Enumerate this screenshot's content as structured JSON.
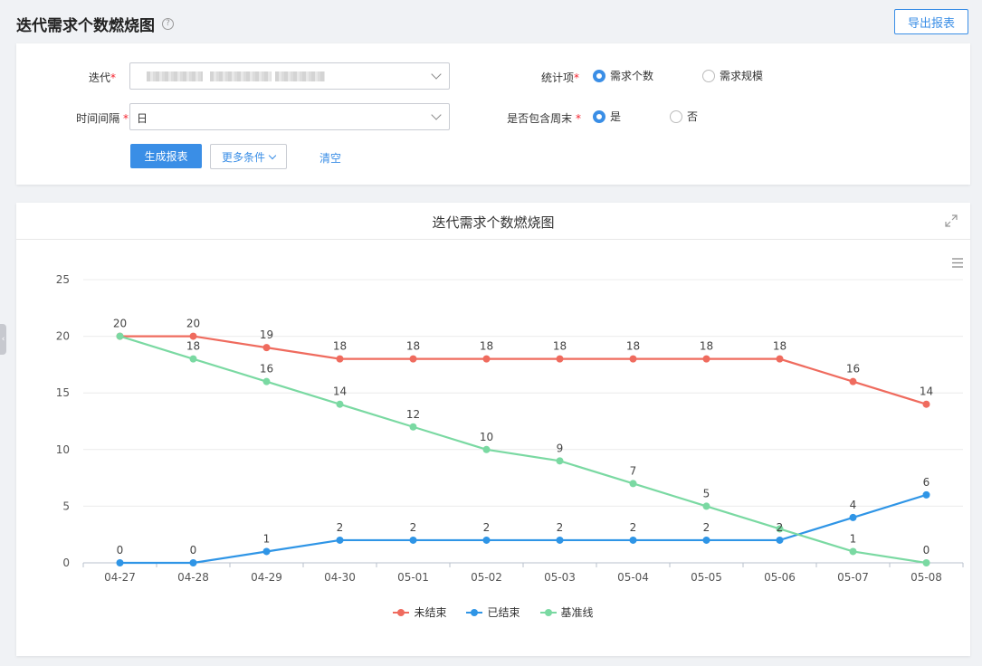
{
  "page": {
    "title": "迭代需求个数燃烧图",
    "help_icon": "question-circle-icon",
    "export_label": "导出报表"
  },
  "filters": {
    "iteration": {
      "label": "迭代",
      "value": ""
    },
    "interval": {
      "label": "时间间隔",
      "value": "日"
    },
    "stat_item": {
      "label": "统计项",
      "options": [
        "需求个数",
        "需求规模"
      ],
      "selected": "需求个数"
    },
    "include_weekend": {
      "label": "是否包含周末",
      "options": [
        "是",
        "否"
      ],
      "selected": "是"
    },
    "generate_label": "生成报表",
    "more_label": "更多条件",
    "clear_label": "清空"
  },
  "chart_data": {
    "type": "line",
    "title": "迭代需求个数燃烧图",
    "categories": [
      "04-27",
      "04-28",
      "04-29",
      "04-30",
      "05-01",
      "05-02",
      "05-03",
      "05-04",
      "05-05",
      "05-06",
      "05-07",
      "05-08"
    ],
    "ylim": [
      0,
      25
    ],
    "yticks": [
      0,
      5,
      10,
      15,
      20,
      25
    ],
    "grid": true,
    "legend": "bottom-center",
    "series": [
      {
        "name": "未结束",
        "color": "#ef6b5e",
        "values": [
          20,
          20,
          19,
          18,
          18,
          18,
          18,
          18,
          18,
          18,
          16,
          14
        ]
      },
      {
        "name": "已结束",
        "color": "#2f95e6",
        "values": [
          0,
          0,
          1,
          2,
          2,
          2,
          2,
          2,
          2,
          2,
          4,
          6
        ]
      },
      {
        "name": "基准线",
        "color": "#7ad9a2",
        "values": [
          20,
          18,
          16,
          14,
          12,
          10,
          9,
          7,
          5,
          3,
          1,
          0
        ]
      }
    ],
    "data_labels": [
      {
        "series": 0,
        "labels": [
          "20",
          "20",
          "19",
          "18",
          "18",
          "18",
          "18",
          "18",
          "18",
          "18",
          "16",
          "14"
        ]
      },
      {
        "series": 1,
        "labels": [
          "0",
          "0",
          "1",
          "2",
          "2",
          "2",
          "2",
          "2",
          "2",
          "2",
          "4",
          "6"
        ]
      },
      {
        "series": 2,
        "labels": [
          "",
          "18",
          "16",
          "14",
          "12",
          "10",
          "9",
          "7",
          "5",
          "",
          "1",
          "0"
        ]
      }
    ]
  },
  "icons": {
    "expand": "expand-icon",
    "menu": "hamburger-menu-icon",
    "collapse": "chevron-left-icon"
  }
}
